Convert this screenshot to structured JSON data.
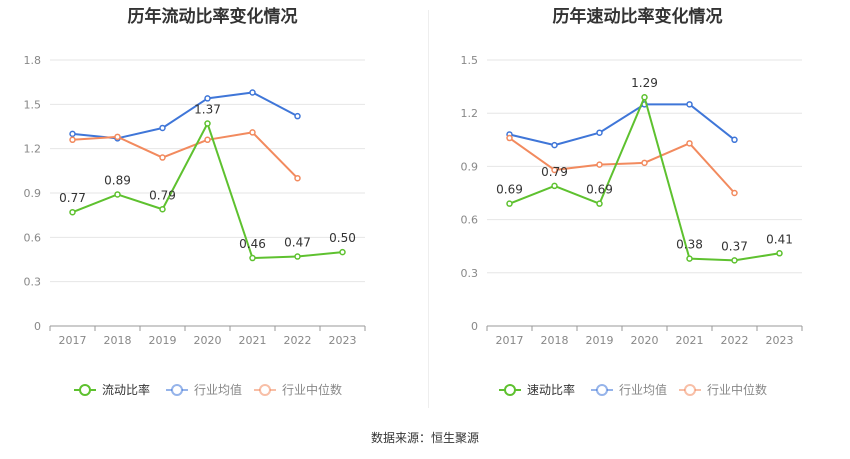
{
  "footer": {
    "source": "数据来源：恒生聚源"
  },
  "chart_data": [
    {
      "type": "line",
      "title": "历年流动比率变化情况",
      "categories": [
        "2017",
        "2018",
        "2019",
        "2020",
        "2021",
        "2022",
        "2023"
      ],
      "ylim": [
        0,
        1.8
      ],
      "yticks": [
        "0",
        "0.3",
        "0.6",
        "0.9",
        "1.2",
        "1.5",
        "1.8"
      ],
      "grid": true,
      "legend_position": "bottom",
      "series": [
        {
          "name": "流动比率",
          "color": "#5ec12f",
          "show_labels": true,
          "values": [
            0.77,
            0.89,
            0.79,
            1.37,
            0.46,
            0.47,
            0.5
          ],
          "labels": [
            "0.77",
            "0.89",
            "0.79",
            "1.37",
            "0.46",
            "0.47",
            "0.50"
          ]
        },
        {
          "name": "行业均值",
          "color": "#3f76d8",
          "show_labels": false,
          "values": [
            1.3,
            1.27,
            1.34,
            1.54,
            1.58,
            1.42,
            null
          ]
        },
        {
          "name": "行业中位数",
          "color": "#f28a5e",
          "show_labels": false,
          "values": [
            1.26,
            1.28,
            1.14,
            1.26,
            1.31,
            1.0,
            null
          ]
        }
      ]
    },
    {
      "type": "line",
      "title": "历年速动比率变化情况",
      "categories": [
        "2017",
        "2018",
        "2019",
        "2020",
        "2021",
        "2022",
        "2023"
      ],
      "ylim": [
        0,
        1.5
      ],
      "yticks": [
        "0",
        "0.3",
        "0.6",
        "0.9",
        "1.2",
        "1.5"
      ],
      "grid": true,
      "legend_position": "bottom",
      "series": [
        {
          "name": "速动比率",
          "color": "#5ec12f",
          "show_labels": true,
          "values": [
            0.69,
            0.79,
            0.69,
            1.29,
            0.38,
            0.37,
            0.41
          ],
          "labels": [
            "0.69",
            "0.79",
            "0.69",
            "1.29",
            "0.38",
            "0.37",
            "0.41"
          ]
        },
        {
          "name": "行业均值",
          "color": "#3f76d8",
          "show_labels": false,
          "values": [
            1.08,
            1.02,
            1.09,
            1.25,
            1.25,
            1.05,
            null
          ]
        },
        {
          "name": "行业中位数",
          "color": "#f28a5e",
          "show_labels": false,
          "values": [
            1.06,
            0.88,
            0.91,
            0.92,
            1.03,
            0.75,
            null
          ]
        }
      ]
    }
  ]
}
